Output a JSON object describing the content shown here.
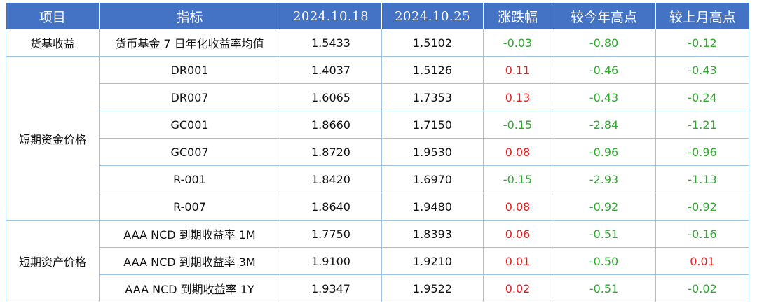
{
  "header": {
    "col_item": "项目",
    "col_indicator": "指标",
    "col_date1": "2024.10.18",
    "col_date2": "2024.10.25",
    "col_change": "涨跌幅",
    "col_vs_year_high": "较今年高点",
    "col_vs_month_high": "较上月高点"
  },
  "groups": {
    "money_fund": "货基收益",
    "short_funding": "短期资金价格",
    "short_asset": "短期资产价格"
  },
  "rows": [
    {
      "indicator": "货币基金 7 日年化收益率均值",
      "v1": "1.5433",
      "v2": "1.5102",
      "chg": "-0.03",
      "yr": "-0.80",
      "mo": "-0.12"
    },
    {
      "indicator": "DR001",
      "v1": "1.4037",
      "v2": "1.5126",
      "chg": "0.11",
      "yr": "-0.46",
      "mo": "-0.43"
    },
    {
      "indicator": "DR007",
      "v1": "1.6065",
      "v2": "1.7353",
      "chg": "0.13",
      "yr": "-0.43",
      "mo": "-0.24"
    },
    {
      "indicator": "GC001",
      "v1": "1.8660",
      "v2": "1.7150",
      "chg": "-0.15",
      "yr": "-2.84",
      "mo": "-1.21"
    },
    {
      "indicator": "GC007",
      "v1": "1.8720",
      "v2": "1.9530",
      "chg": "0.08",
      "yr": "-0.96",
      "mo": "-0.96"
    },
    {
      "indicator": "R-001",
      "v1": "1.8420",
      "v2": "1.6970",
      "chg": "-0.15",
      "yr": "-2.93",
      "mo": "-1.13"
    },
    {
      "indicator": "R-007",
      "v1": "1.8640",
      "v2": "1.9480",
      "chg": "0.08",
      "yr": "-0.92",
      "mo": "-0.92"
    },
    {
      "indicator": "AAA NCD 到期收益率 1M",
      "v1": "1.7750",
      "v2": "1.8393",
      "chg": "0.06",
      "yr": "-0.51",
      "mo": "-0.16"
    },
    {
      "indicator": "AAA NCD 到期收益率 3M",
      "v1": "1.9100",
      "v2": "1.9210",
      "chg": "0.01",
      "yr": "-0.50",
      "mo": "0.01"
    },
    {
      "indicator": "AAA NCD 到期收益率 1Y",
      "v1": "1.9347",
      "v2": "1.9522",
      "chg": "0.02",
      "yr": "-0.51",
      "mo": "-0.02"
    }
  ],
  "colors": {
    "header_bg": "#4472C4",
    "border": "#9DC3E6",
    "negative": "#2EAA2E",
    "positive": "#E02020"
  }
}
